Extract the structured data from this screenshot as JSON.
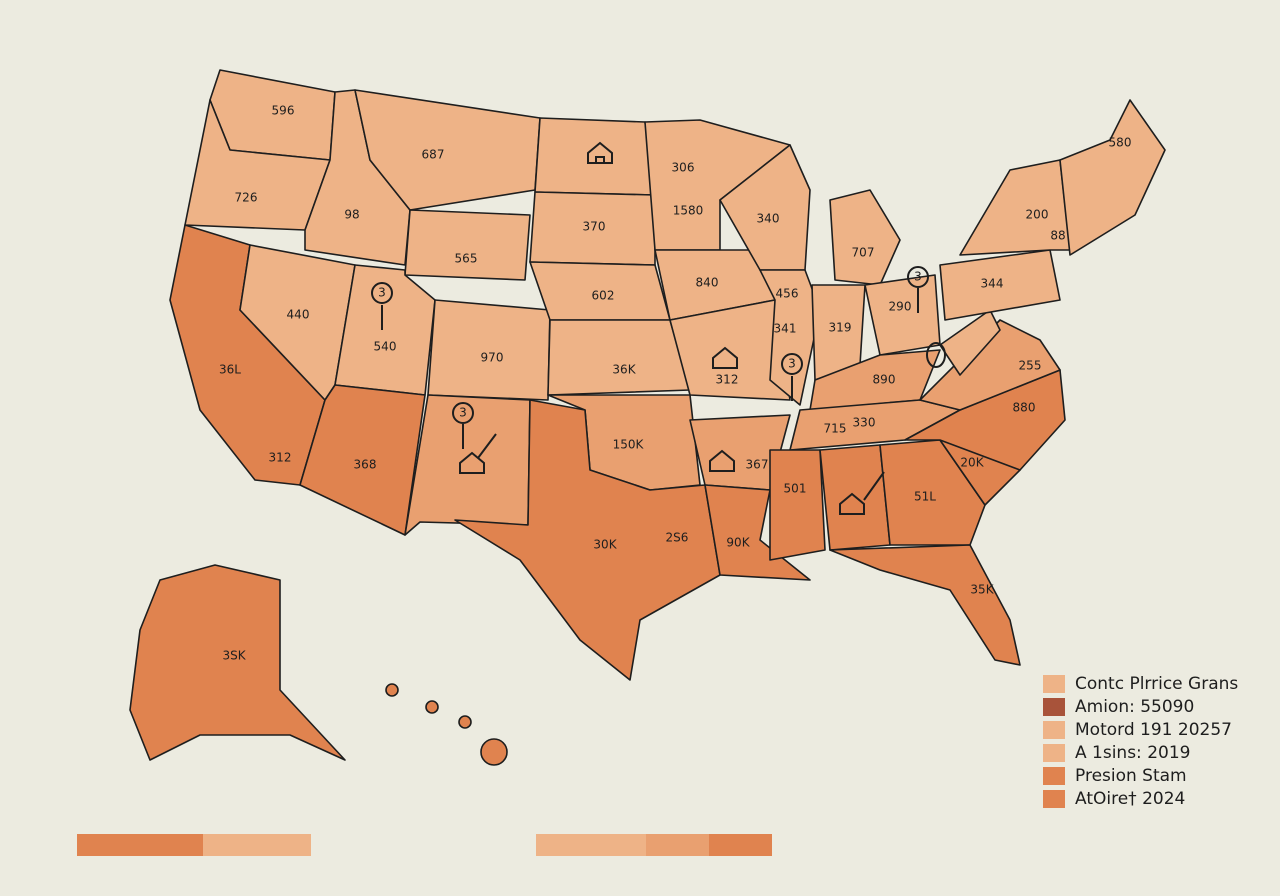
{
  "regions": [
    {
      "label": "596"
    },
    {
      "label": "687"
    },
    {
      "label": "306"
    },
    {
      "label": "580"
    },
    {
      "label": "726"
    },
    {
      "label": "98"
    },
    {
      "label": "1580"
    },
    {
      "label": "340"
    },
    {
      "label": "200"
    },
    {
      "label": "370"
    },
    {
      "label": "88"
    },
    {
      "label": "565"
    },
    {
      "label": "707"
    },
    {
      "label": "840"
    },
    {
      "label": "456"
    },
    {
      "label": "344"
    },
    {
      "label": "602"
    },
    {
      "label": "290"
    },
    {
      "label": "440"
    },
    {
      "label": "341"
    },
    {
      "label": "319"
    },
    {
      "label": "540"
    },
    {
      "label": "970"
    },
    {
      "label": "36K"
    },
    {
      "label": "312"
    },
    {
      "label": "890"
    },
    {
      "label": "255"
    },
    {
      "label": "36L"
    },
    {
      "label": "880"
    },
    {
      "label": "715"
    },
    {
      "label": "330"
    },
    {
      "label": "150K"
    },
    {
      "label": "312"
    },
    {
      "label": "367"
    },
    {
      "label": "20K"
    },
    {
      "label": "368"
    },
    {
      "label": "501"
    },
    {
      "label": "51L"
    },
    {
      "label": "30K"
    },
    {
      "label": "2S6"
    },
    {
      "label": "90K"
    },
    {
      "label": "35K"
    },
    {
      "label": "3SK"
    }
  ],
  "markers": [
    {
      "label": "3"
    },
    {
      "label": "3"
    },
    {
      "label": "3"
    },
    {
      "label": "3"
    }
  ],
  "legend": {
    "items": [
      {
        "label": "Contc Plrrice Grans",
        "color": "#eeb387"
      },
      {
        "label": "Amion: 55090",
        "color": "#a8533a"
      },
      {
        "label": "Motord 191 20257",
        "color": "#eeb387"
      },
      {
        "label": "A 1sins: 2019",
        "color": "#eeb387"
      },
      {
        "label": "Presion Stam",
        "color": "#e0834f"
      },
      {
        "label": "AtOire† 2024",
        "color": "#e0834f"
      }
    ]
  }
}
